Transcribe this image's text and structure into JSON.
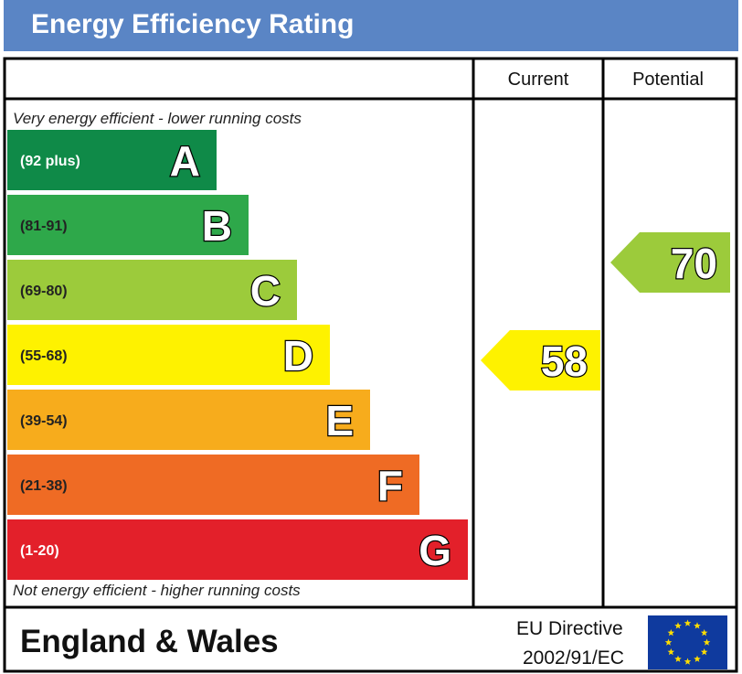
{
  "title": "Energy Efficiency Rating",
  "columns": {
    "current": "Current",
    "potential": "Potential"
  },
  "top_note": "Very energy efficient - lower running costs",
  "bottom_note": "Not energy efficient - higher running costs",
  "footer": {
    "region": "England & Wales",
    "directive_line1": "EU Directive",
    "directive_line2": "2002/91/EC"
  },
  "colors": {
    "header": "#5a85c5",
    "A": "#0f8a48",
    "B": "#2ea84a",
    "C": "#9ccb3b",
    "D": "#fef200",
    "E": "#f7ac1c",
    "F": "#ef6b24",
    "G": "#e3202a",
    "eu_flag": "#0f3a9e",
    "eu_stars": "#ffdd00"
  },
  "chart_data": {
    "type": "bar",
    "title": "Energy Efficiency Rating",
    "categories": [
      "A",
      "B",
      "C",
      "D",
      "E",
      "F",
      "G"
    ],
    "ranges": [
      "(92 plus)",
      "(81-91)",
      "(69-80)",
      "(55-68)",
      "(39-54)",
      "(21-38)",
      "(1-20)"
    ],
    "series": [
      {
        "name": "Current",
        "value": 58,
        "band": "D"
      },
      {
        "name": "Potential",
        "value": 70,
        "band": "C"
      }
    ]
  }
}
